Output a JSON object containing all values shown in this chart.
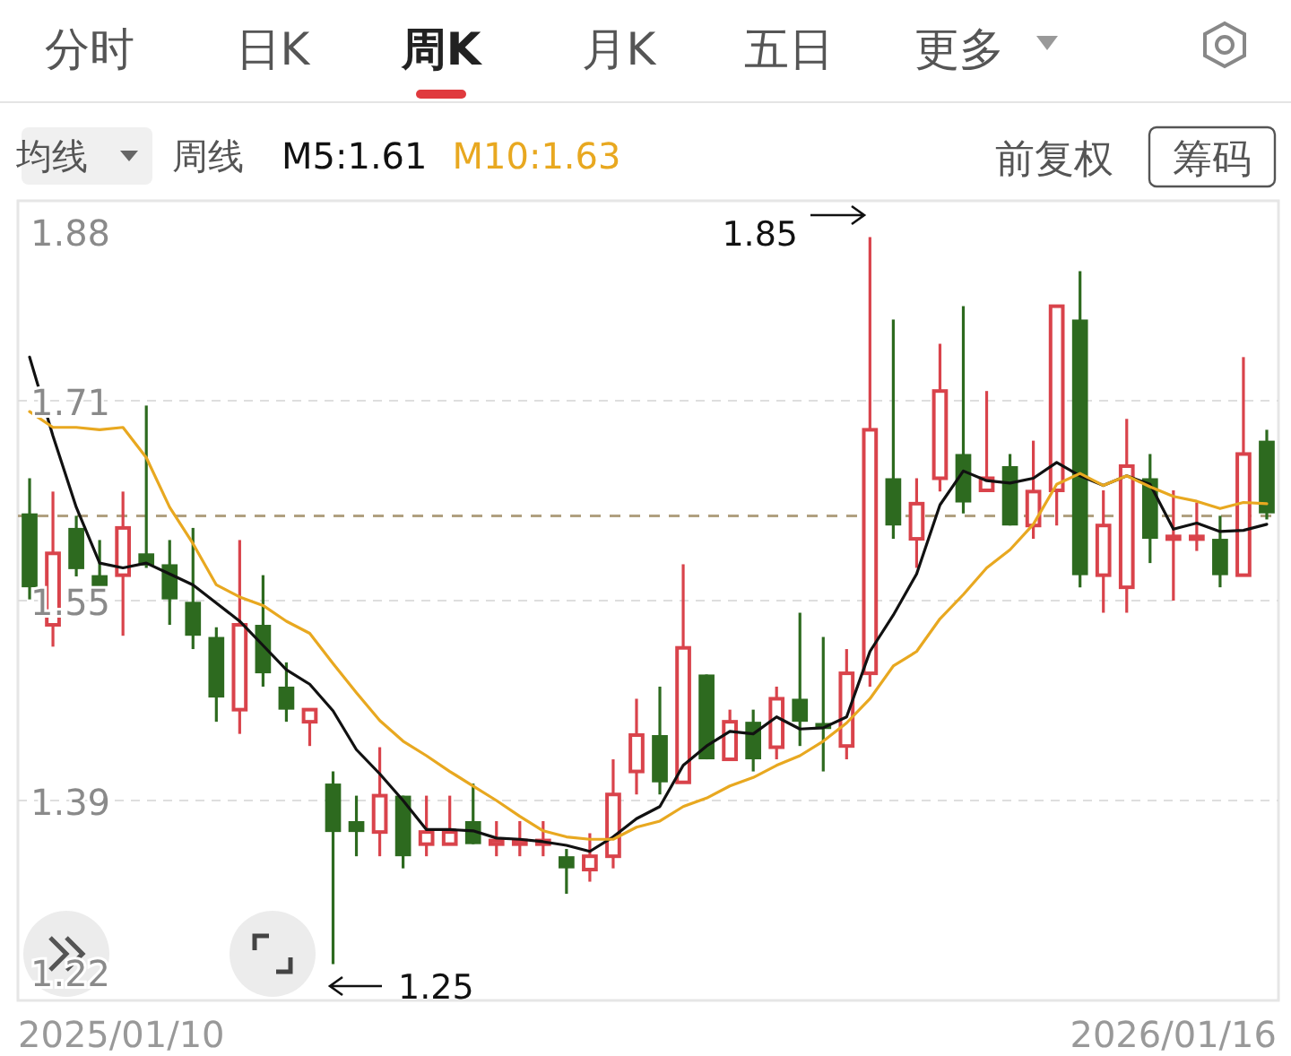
{
  "chart_data": {
    "type": "candlestick",
    "categories": [
      null,
      null,
      null,
      null,
      null,
      null,
      null,
      null,
      null,
      null,
      null,
      null,
      null,
      null,
      null,
      null,
      null,
      null,
      null,
      null,
      null,
      null,
      null,
      null,
      null,
      null,
      null,
      null,
      null,
      null,
      null,
      null,
      null,
      null,
      null,
      null,
      null,
      null,
      null,
      null,
      null,
      null,
      null,
      null,
      null,
      null,
      null,
      null,
      null,
      null,
      null,
      null,
      null,
      null
    ],
    "ohlc": [
      [
        1.622,
        1.651,
        1.551,
        1.561
      ],
      [
        1.53,
        1.64,
        1.512,
        1.589
      ],
      [
        1.61,
        1.62,
        1.57,
        1.576
      ],
      [
        1.571,
        1.6,
        1.56,
        1.561
      ],
      [
        1.571,
        1.64,
        1.521,
        1.61
      ],
      [
        1.589,
        1.711,
        1.577,
        1.579
      ],
      [
        1.58,
        1.6,
        1.53,
        1.551
      ],
      [
        1.549,
        1.61,
        1.51,
        1.521
      ],
      [
        1.52,
        1.528,
        1.45,
        1.47
      ],
      [
        1.46,
        1.6,
        1.44,
        1.53
      ],
      [
        1.53,
        1.571,
        1.479,
        1.49
      ],
      [
        1.479,
        1.499,
        1.45,
        1.46
      ],
      [
        1.45,
        1.46,
        1.43,
        1.46
      ],
      [
        1.399,
        1.409,
        1.25,
        1.359
      ],
      [
        1.368,
        1.389,
        1.339,
        1.359
      ],
      [
        1.359,
        1.429,
        1.339,
        1.389
      ],
      [
        1.389,
        1.389,
        1.329,
        1.339
      ],
      [
        1.349,
        1.389,
        1.339,
        1.359
      ],
      [
        1.349,
        1.389,
        1.349,
        1.359
      ],
      [
        1.368,
        1.399,
        1.349,
        1.349
      ],
      [
        1.349,
        1.368,
        1.339,
        1.352
      ],
      [
        1.349,
        1.368,
        1.339,
        1.352
      ],
      [
        1.349,
        1.368,
        1.339,
        1.352
      ],
      [
        1.339,
        1.345,
        1.308,
        1.329
      ],
      [
        1.328,
        1.358,
        1.318,
        1.339
      ],
      [
        1.339,
        1.419,
        1.329,
        1.39
      ],
      [
        1.409,
        1.469,
        1.39,
        1.439
      ],
      [
        1.439,
        1.479,
        1.39,
        1.4
      ],
      [
        1.4,
        1.58,
        1.4,
        1.511
      ],
      [
        1.489,
        1.489,
        1.419,
        1.419
      ],
      [
        1.419,
        1.46,
        1.419,
        1.45
      ],
      [
        1.45,
        1.46,
        1.409,
        1.419
      ],
      [
        1.429,
        1.479,
        1.419,
        1.469
      ],
      [
        1.469,
        1.54,
        1.43,
        1.45
      ],
      [
        1.449,
        1.52,
        1.409,
        1.444
      ],
      [
        1.43,
        1.51,
        1.419,
        1.49
      ],
      [
        1.49,
        1.85,
        1.479,
        1.691
      ],
      [
        1.651,
        1.782,
        1.601,
        1.612
      ],
      [
        1.601,
        1.651,
        1.577,
        1.63
      ],
      [
        1.651,
        1.762,
        1.64,
        1.723
      ],
      [
        1.671,
        1.793,
        1.622,
        1.631
      ],
      [
        1.641,
        1.723,
        1.641,
        1.651
      ],
      [
        1.661,
        1.671,
        1.612,
        1.612
      ],
      [
        1.612,
        1.682,
        1.601,
        1.64
      ],
      [
        1.641,
        1.793,
        1.612,
        1.793
      ],
      [
        1.782,
        1.822,
        1.561,
        1.571
      ],
      [
        1.571,
        1.641,
        1.54,
        1.612
      ],
      [
        1.561,
        1.7,
        1.54,
        1.661
      ],
      [
        1.651,
        1.671,
        1.581,
        1.601
      ],
      [
        1.601,
        1.641,
        1.55,
        1.603
      ],
      [
        1.601,
        1.631,
        1.591,
        1.603
      ],
      [
        1.601,
        1.62,
        1.561,
        1.571
      ],
      [
        1.571,
        1.751,
        1.571,
        1.671
      ],
      [
        1.682,
        1.691,
        1.617,
        1.622
      ]
    ],
    "series": [
      {
        "name": "M5:1.61",
        "type": "line",
        "color": "#111111",
        "values": [
          1.751,
          1.686,
          1.627,
          1.581,
          1.577,
          1.581,
          1.572,
          1.563,
          1.548,
          1.533,
          1.513,
          1.493,
          1.481,
          1.459,
          1.427,
          1.407,
          1.385,
          1.361,
          1.361,
          1.36,
          1.354,
          1.353,
          1.351,
          1.348,
          1.343,
          1.355,
          1.37,
          1.38,
          1.414,
          1.43,
          1.442,
          1.44,
          1.454,
          1.444,
          1.445,
          1.454,
          1.508,
          1.538,
          1.572,
          1.629,
          1.657,
          1.649,
          1.647,
          1.651,
          1.664,
          1.653,
          1.645,
          1.653,
          1.646,
          1.609,
          1.614,
          1.607,
          1.608,
          1.613
        ]
      },
      {
        "name": "M10:1.63",
        "type": "line",
        "color": "#e8a820",
        "values": [
          1.706,
          1.693,
          1.693,
          1.691,
          1.693,
          1.668,
          1.627,
          1.597,
          1.563,
          1.553,
          1.546,
          1.533,
          1.523,
          1.498,
          1.474,
          1.451,
          1.434,
          1.422,
          1.409,
          1.397,
          1.385,
          1.372,
          1.36,
          1.355,
          1.353,
          1.353,
          1.363,
          1.368,
          1.38,
          1.387,
          1.397,
          1.404,
          1.414,
          1.422,
          1.434,
          1.449,
          1.469,
          1.496,
          1.508,
          1.535,
          1.555,
          1.577,
          1.592,
          1.613,
          1.646,
          1.655,
          1.645,
          1.653,
          1.644,
          1.636,
          1.632,
          1.626,
          1.631,
          1.63
        ]
      }
    ],
    "ylim": [
      1.22,
      1.88
    ],
    "yticks": [
      1.22,
      {
        "value": 1.385,
        "label": "1.39"
      },
      1.55,
      {
        "value": 1.715,
        "label": "1.71"
      },
      1.88
    ],
    "grid": "y",
    "ref_lines": [
      {
        "axis": "y",
        "value": 1.62,
        "color": "#b0a080",
        "line_style": "dashed"
      }
    ],
    "legend": "top left",
    "annotations": [
      "分时",
      "日K",
      "周K",
      "月K",
      "五日",
      "更多",
      "均线",
      "周线",
      "前复权",
      "筹码",
      "1.85",
      "1.25",
      "2025/01/10",
      "2026/01/16"
    ]
  }
}
